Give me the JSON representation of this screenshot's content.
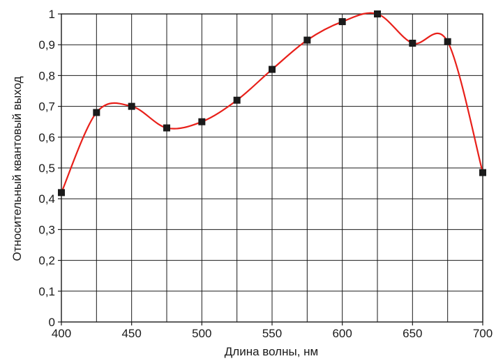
{
  "chart_data": {
    "type": "line",
    "title": "",
    "xlabel": "Длина волны, нм",
    "ylabel": "Относительный квантовый выход",
    "xlim": [
      400,
      700
    ],
    "ylim": [
      0,
      1
    ],
    "x_ticks": [
      400,
      450,
      500,
      550,
      600,
      650,
      700
    ],
    "x_tick_labels": [
      "400",
      "450",
      "500",
      "550",
      "600",
      "650",
      "700"
    ],
    "y_ticks": [
      0,
      0.1,
      0.2,
      0.3,
      0.4,
      0.5,
      0.6,
      0.7,
      0.8,
      0.9,
      1
    ],
    "y_tick_labels": [
      "0",
      "0,1",
      "0,2",
      "0,3",
      "0,4",
      "0,5",
      "0,6",
      "0,7",
      "0,8",
      "0,9",
      "1"
    ],
    "grid": true,
    "grid_x_step": 25,
    "grid_y_step": 0.1,
    "series": [
      {
        "line_color": "#e8201a",
        "marker_color": "#1a1a1a",
        "marker": "square",
        "smooth": true,
        "x": [
          400,
          425,
          450,
          475,
          500,
          525,
          550,
          575,
          600,
          625,
          650,
          675,
          700
        ],
        "y": [
          0.42,
          0.68,
          0.7,
          0.63,
          0.65,
          0.72,
          0.82,
          0.915,
          0.975,
          1.0,
          0.905,
          0.91,
          0.485
        ]
      }
    ]
  }
}
